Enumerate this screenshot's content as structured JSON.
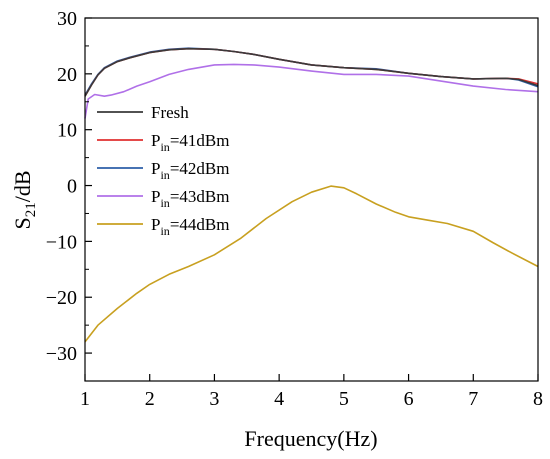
{
  "chart_data": {
    "type": "line",
    "xlabel": "Frequency(Hz)",
    "ylabel": {
      "base": "S",
      "sub": "21",
      "rest": "/dB"
    },
    "xlim": [
      1,
      8
    ],
    "ylim": [
      -35,
      30
    ],
    "xticks": [
      1,
      2,
      3,
      4,
      5,
      6,
      7,
      8
    ],
    "yticks": [
      -30,
      -20,
      -10,
      0,
      10,
      20,
      30
    ],
    "grid": false,
    "legend_position": "middle-left",
    "series": [
      {
        "name": "Fresh",
        "color": "#3a3a3a",
        "x": [
          1.0,
          1.1,
          1.2,
          1.3,
          1.5,
          1.7,
          2.0,
          2.3,
          2.6,
          3.0,
          3.3,
          3.6,
          4.0,
          4.5,
          5.0,
          5.5,
          6.0,
          6.5,
          7.0,
          7.5,
          7.7,
          8.0
        ],
        "y": [
          16.0,
          18.0,
          19.8,
          21.0,
          22.2,
          22.9,
          23.8,
          24.3,
          24.5,
          24.4,
          24.0,
          23.5,
          22.6,
          21.6,
          21.1,
          20.8,
          20.1,
          19.5,
          19.1,
          19.2,
          19.0,
          17.9
        ]
      },
      {
        "name": "P_in=41dBm",
        "label": {
          "base": "P",
          "sub": "in",
          "rest": "=41dBm"
        },
        "color": "#e03030",
        "x": [
          1.0,
          1.1,
          1.2,
          1.3,
          1.5,
          1.7,
          2.0,
          2.3,
          2.6,
          3.0,
          3.3,
          3.6,
          4.0,
          4.5,
          5.0,
          5.5,
          6.0,
          6.5,
          7.0,
          7.5,
          7.7,
          8.0
        ],
        "y": [
          16.0,
          18.0,
          19.8,
          21.0,
          22.2,
          22.9,
          23.8,
          24.3,
          24.5,
          24.4,
          24.0,
          23.5,
          22.6,
          21.6,
          21.1,
          20.8,
          20.1,
          19.5,
          19.1,
          19.2,
          19.1,
          18.2
        ]
      },
      {
        "name": "P_in=42dBm",
        "label": {
          "base": "P",
          "sub": "in",
          "rest": "=42dBm"
        },
        "color": "#2d5fa8",
        "x": [
          1.0,
          1.1,
          1.2,
          1.3,
          1.5,
          1.7,
          2.0,
          2.3,
          2.6,
          3.0,
          3.3,
          3.6,
          4.0,
          4.5,
          5.0,
          5.5,
          6.0,
          6.5,
          7.0,
          7.5,
          7.7,
          8.0
        ],
        "y": [
          16.2,
          18.2,
          19.9,
          21.1,
          22.3,
          23.0,
          23.9,
          24.4,
          24.6,
          24.4,
          24.0,
          23.5,
          22.6,
          21.6,
          21.1,
          20.9,
          20.1,
          19.5,
          19.1,
          19.2,
          18.9,
          17.7
        ]
      },
      {
        "name": "P_in=43dBm",
        "label": {
          "base": "P",
          "sub": "in",
          "rest": "=43dBm"
        },
        "color": "#b070e8",
        "x": [
          1.0,
          1.05,
          1.15,
          1.3,
          1.4,
          1.6,
          1.8,
          2.0,
          2.3,
          2.6,
          3.0,
          3.3,
          3.6,
          4.0,
          4.5,
          5.0,
          5.5,
          6.0,
          6.5,
          7.0,
          7.5,
          8.0
        ],
        "y": [
          12.0,
          15.5,
          16.3,
          16.0,
          16.2,
          16.8,
          17.8,
          18.6,
          19.9,
          20.8,
          21.6,
          21.7,
          21.6,
          21.2,
          20.5,
          19.9,
          19.9,
          19.6,
          18.7,
          17.8,
          17.2,
          16.8
        ]
      },
      {
        "name": "P_in=44dBm",
        "label": {
          "base": "P",
          "sub": "in",
          "rest": "=44dBm"
        },
        "color": "#c8a020",
        "x": [
          1.0,
          1.2,
          1.5,
          1.8,
          2.0,
          2.3,
          2.6,
          3.0,
          3.4,
          3.8,
          4.2,
          4.5,
          4.8,
          5.0,
          5.2,
          5.5,
          5.8,
          6.0,
          6.3,
          6.6,
          7.0,
          7.3,
          7.6,
          8.0
        ],
        "y": [
          -28.0,
          -25.0,
          -22.0,
          -19.3,
          -17.7,
          -15.9,
          -14.5,
          -12.4,
          -9.5,
          -5.9,
          -2.9,
          -1.2,
          -0.1,
          -0.4,
          -1.5,
          -3.3,
          -4.8,
          -5.6,
          -6.2,
          -6.8,
          -8.2,
          -10.2,
          -12.1,
          -14.5
        ]
      }
    ]
  }
}
